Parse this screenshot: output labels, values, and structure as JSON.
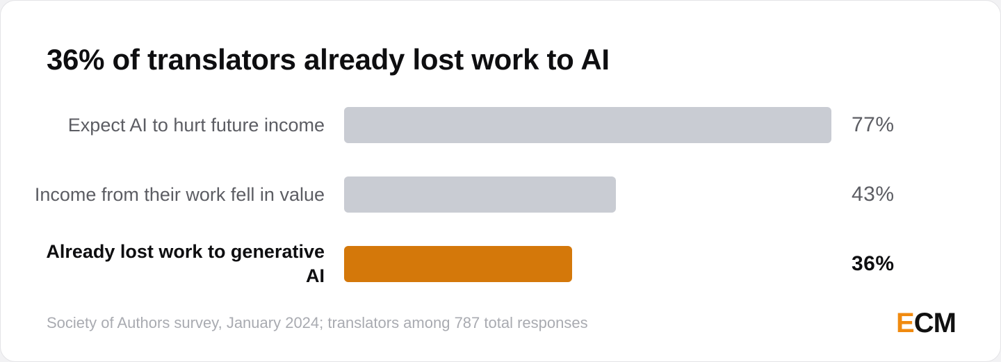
{
  "title": "36% of translators already lost work to AI",
  "source": "Society of Authors survey, January 2024; translators among 787 total responses",
  "logo": {
    "accent_letter": "E",
    "rest": "CM"
  },
  "colors": {
    "bar_default": "#c9ccd3",
    "bar_highlight": "#d4780a",
    "logo_accent": "#f08a0f"
  },
  "chart_data": {
    "type": "bar",
    "orientation": "horizontal",
    "title": "36% of translators already lost work to AI",
    "categories": [
      "Expect AI to hurt future income",
      "Income from their work fell in value",
      "Already lost work to generative AI"
    ],
    "values": [
      77,
      43,
      36
    ],
    "value_labels": [
      "77%",
      "43%",
      "36%"
    ],
    "highlighted": [
      false,
      false,
      true
    ],
    "xlim": [
      0,
      100
    ],
    "grid": false,
    "legend": "none"
  }
}
